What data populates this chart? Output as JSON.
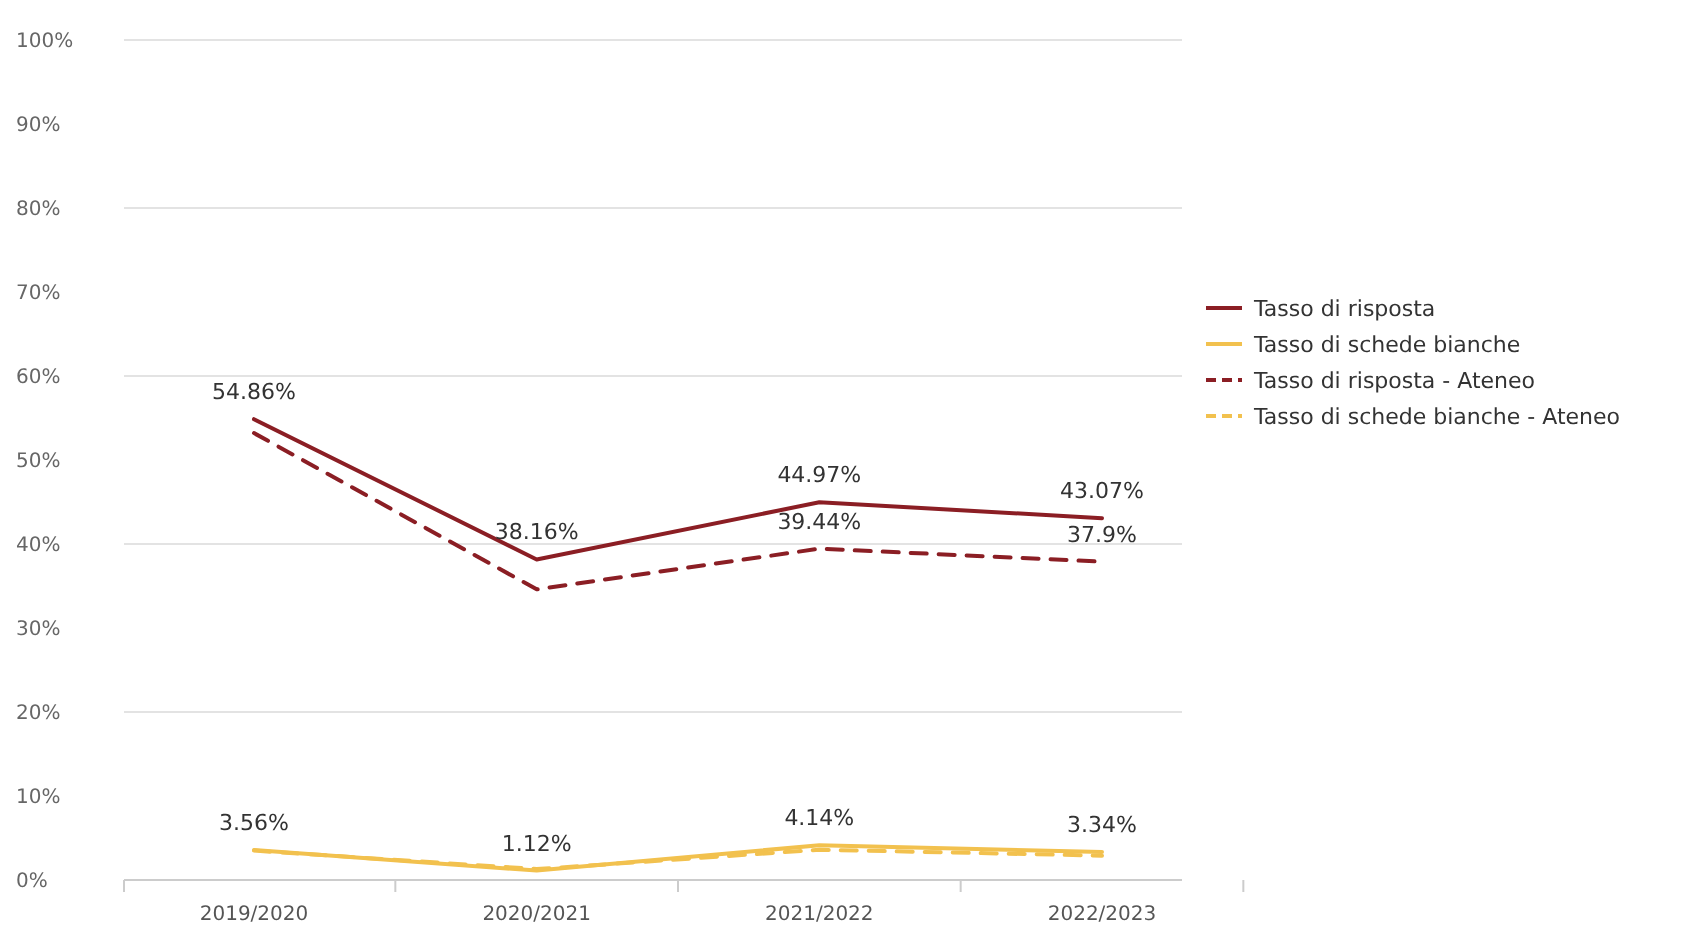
{
  "chart_data": {
    "type": "line",
    "categories": [
      "2019/2020",
      "2020/2021",
      "2021/2022",
      "2022/2023"
    ],
    "series": [
      {
        "name": "Tasso di risposta",
        "color": "#8b1e24",
        "values": [
          54.86,
          38.16,
          44.97,
          43.07
        ],
        "value_labels": [
          "54.86%",
          "38.16%",
          "44.97%",
          "43.07%"
        ],
        "line_style": "solid"
      },
      {
        "name": "Tasso di schede bianche",
        "color": "#f2c14e",
        "values": [
          3.56,
          1.12,
          4.14,
          3.34
        ],
        "value_labels": [
          "3.56%",
          "1.12%",
          "4.14%",
          "3.34%"
        ],
        "line_style": "solid"
      },
      {
        "name": "Tasso di risposta - Ateneo",
        "color": "#8b1e24",
        "values": [
          53.2,
          34.6,
          39.44,
          37.9
        ],
        "value_labels": [
          null,
          null,
          "39.44%",
          "37.9%"
        ],
        "line_style": "dashed"
      },
      {
        "name": "Tasso di schede bianche - Ateneo",
        "color": "#f2c14e",
        "values": [
          3.5,
          1.3,
          3.6,
          2.9
        ],
        "line_style": "dashed"
      }
    ],
    "ylim": [
      0,
      100
    ],
    "yticks": [
      {
        "value": 0,
        "label": "0%"
      },
      {
        "value": 10,
        "label": "10%"
      },
      {
        "value": 20,
        "label": "20%"
      },
      {
        "value": 30,
        "label": "30%"
      },
      {
        "value": 40,
        "label": "40%"
      },
      {
        "value": 50,
        "label": "50%"
      },
      {
        "value": 60,
        "label": "60%"
      },
      {
        "value": 70,
        "label": "70%"
      },
      {
        "value": 80,
        "label": "80%"
      },
      {
        "value": 90,
        "label": "90%"
      },
      {
        "value": 100,
        "label": "100%"
      }
    ],
    "grid": "y",
    "legend": "right",
    "marker": "none"
  }
}
